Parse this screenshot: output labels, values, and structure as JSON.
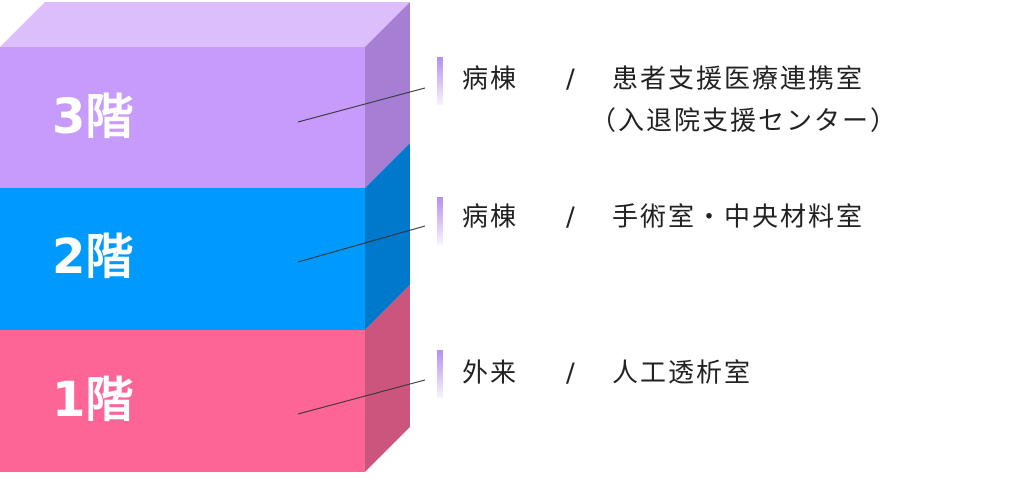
{
  "floors": [
    {
      "label": "3階",
      "category": "病棟",
      "separator": "/",
      "name": "患者支援医療連携室",
      "subname": "（入退院支援センター）"
    },
    {
      "label": "2階",
      "category": "病棟",
      "separator": "/",
      "name": "手術室・中央材料室"
    },
    {
      "label": "1階",
      "category": "外来",
      "separator": "/",
      "name": "人工透析室"
    }
  ]
}
